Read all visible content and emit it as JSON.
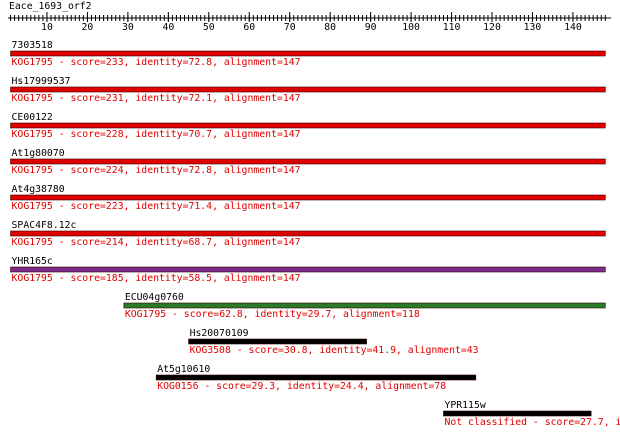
{
  "title": "Eace_1693_orf2",
  "ruler": {
    "range": [
      1,
      148
    ],
    "ticks": [
      10,
      20,
      30,
      40,
      50,
      60,
      70,
      80,
      90,
      100,
      110,
      120,
      130,
      140
    ]
  },
  "hits": [
    {
      "name": "7303518",
      "label": "KOG1795 - score=233, identity=72.8, alignment=147",
      "start": 1,
      "end": 148,
      "color": "#e00000"
    },
    {
      "name": "Hs17999537",
      "label": "KOG1795 - score=231, identity=72.1, alignment=147",
      "start": 1,
      "end": 148,
      "color": "#e00000"
    },
    {
      "name": "CE00122",
      "label": "KOG1795 - score=228, identity=70.7, alignment=147",
      "start": 1,
      "end": 148,
      "color": "#e00000"
    },
    {
      "name": "At1g80070",
      "label": "KOG1795 - score=224, identity=72.8, alignment=147",
      "start": 1,
      "end": 148,
      "color": "#e00000"
    },
    {
      "name": "At4g38780",
      "label": "KOG1795 - score=223, identity=71.4, alignment=147",
      "start": 1,
      "end": 148,
      "color": "#e00000"
    },
    {
      "name": "SPAC4F8.12c",
      "label": "KOG1795 - score=214, identity=68.7, alignment=147",
      "start": 1,
      "end": 148,
      "color": "#e00000"
    },
    {
      "name": "YHR165c",
      "label": "KOG1795 - score=185, identity=58.5, alignment=147",
      "start": 1,
      "end": 148,
      "color": "#7b2c8a"
    },
    {
      "name": "ECU04g0760",
      "label": "KOG1795 - score=62.8, identity=29.7, alignment=118",
      "start": 29,
      "end": 148,
      "color": "#2a7a2a"
    },
    {
      "name": "Hs20070109",
      "label": "KOG3508 - score=30.8, identity=41.9, alignment=43",
      "start": 45,
      "end": 89,
      "color": "#000000"
    },
    {
      "name": "At5g10610",
      "label": "KOG0156 - score=29.3, identity=24.4, alignment=78",
      "start": 37,
      "end": 116,
      "color": "#000000"
    },
    {
      "name": "YPR115w",
      "label": "Not classified - score=27.7, i",
      "start": 108,
      "end": 144.5,
      "color": "#000000"
    }
  ]
}
